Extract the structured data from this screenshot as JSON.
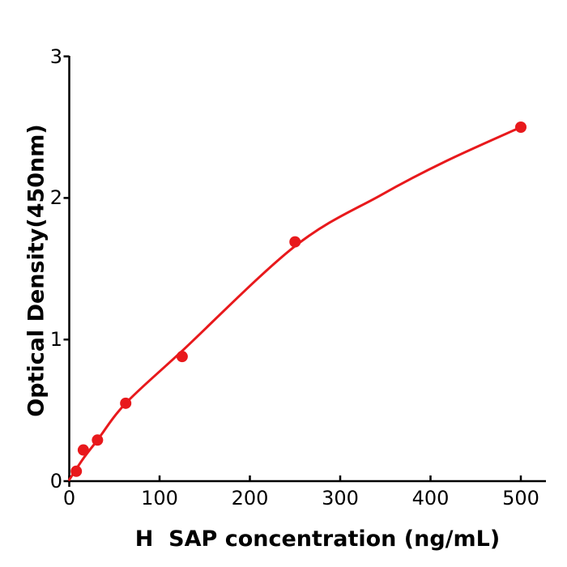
{
  "figure": {
    "background": "#ffffff",
    "axis_color": "#000000",
    "accent_color": "#e8191c"
  },
  "chart_data": {
    "type": "scatter",
    "title": "",
    "xlabel": "H  SAP concentration (ng/mL)",
    "ylabel": "Optical Density(450nm)",
    "x_tick_values": [
      0,
      100,
      200,
      300,
      400,
      500
    ],
    "x_tick_labels": [
      "0",
      "100",
      "200",
      "300",
      "400",
      "500"
    ],
    "y_tick_values": [
      0,
      1,
      2,
      3
    ],
    "y_tick_labels": [
      "0",
      "1",
      "2",
      "3"
    ],
    "xlim": [
      0,
      528
    ],
    "ylim": [
      0,
      3
    ],
    "grid": false,
    "legend_position": "none",
    "series": [
      {
        "name": "H SAP standard curve",
        "color": "#e8191c",
        "marker": "circle",
        "points_x": [
          7.8,
          15.6,
          31.25,
          62.5,
          125,
          250,
          500
        ],
        "points_y": [
          0.07,
          0.22,
          0.29,
          0.55,
          0.88,
          1.69,
          2.5
        ],
        "fit_x": [
          0,
          15.6,
          31.25,
          62.5,
          125,
          250,
          345,
          417,
          500
        ],
        "fit_y": [
          0.01,
          0.16,
          0.29,
          0.55,
          0.92,
          1.66,
          2.02,
          2.26,
          2.5
        ]
      }
    ]
  }
}
